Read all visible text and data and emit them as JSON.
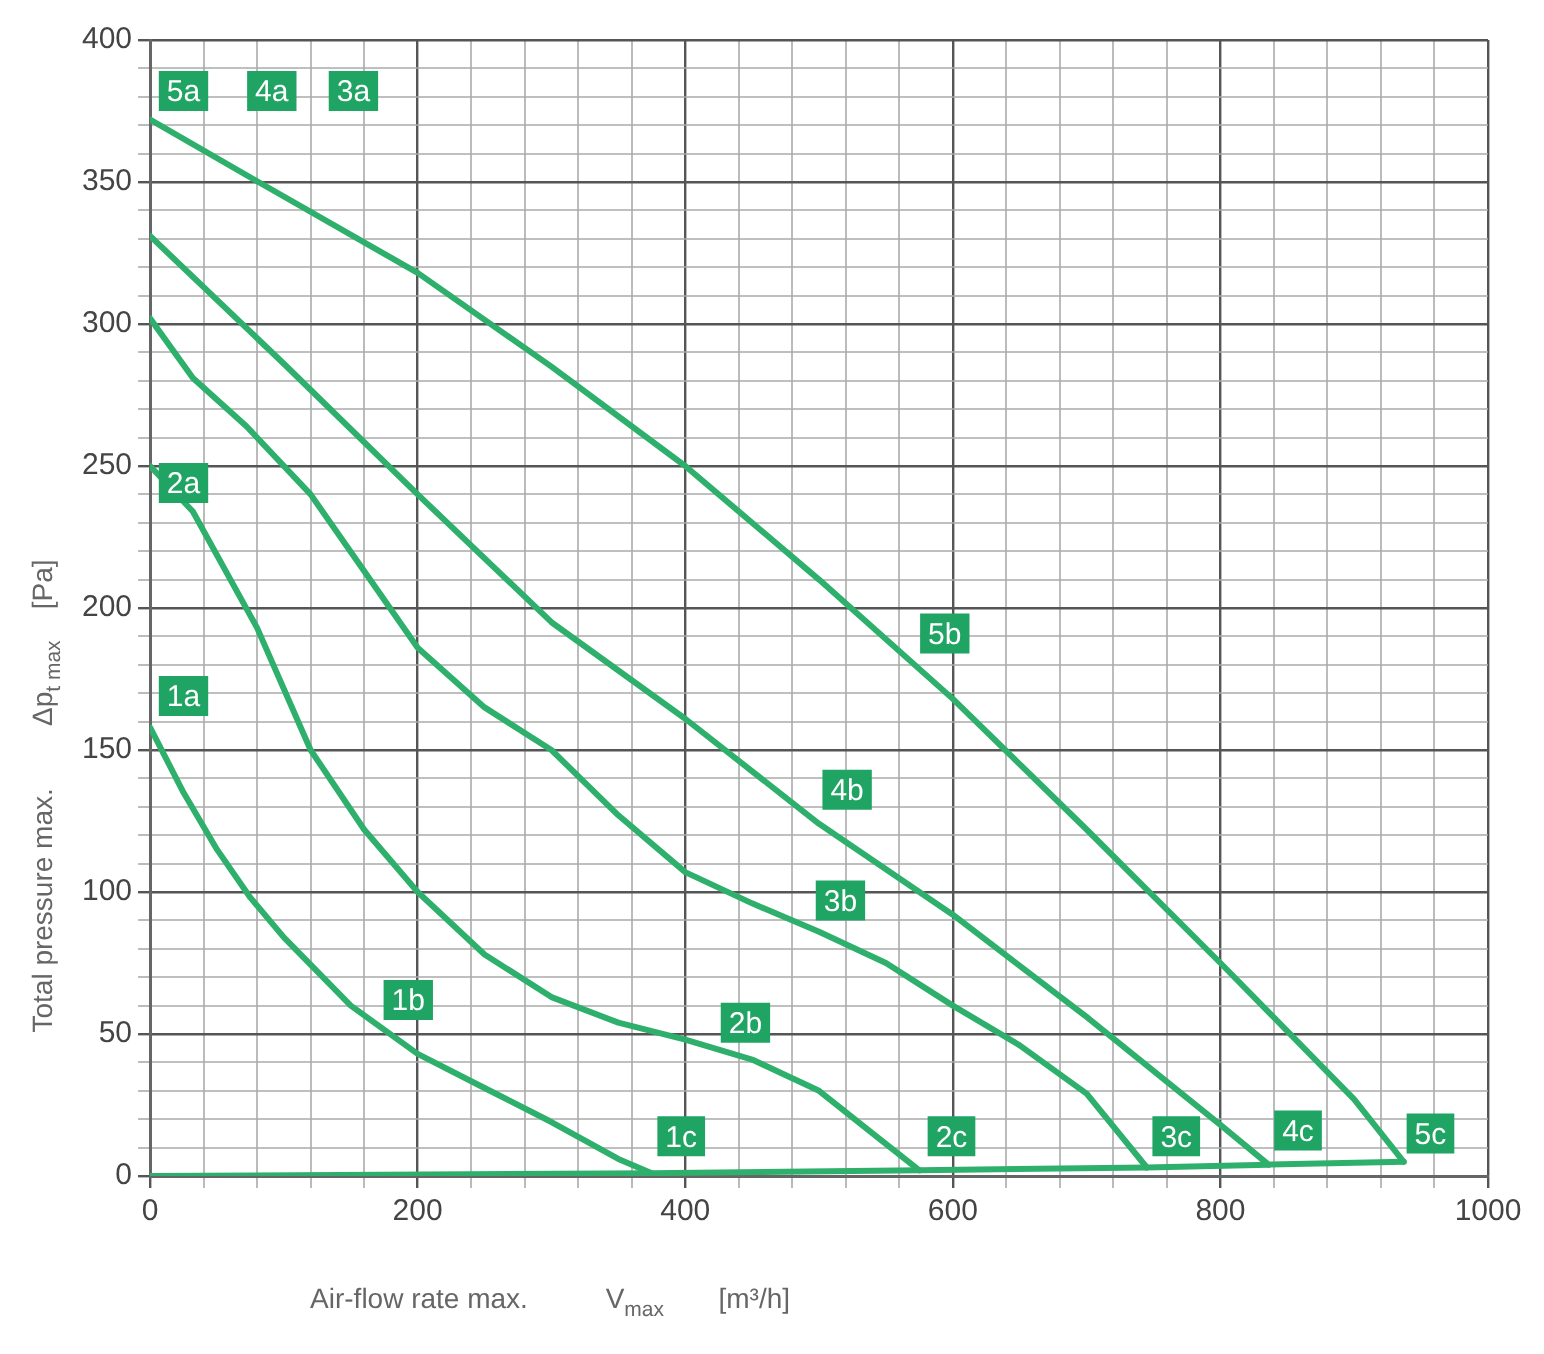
{
  "chart_data": {
    "type": "line",
    "xlabel": "Air-flow rate max.          V$_{max}$       [m³/h]",
    "ylabel": "Total pressure max.        Δp$_{t max}$    [Pa]",
    "xlim": [
      0,
      1000
    ],
    "ylim": [
      0,
      400
    ],
    "xticks": [
      0,
      {
        "value": 40,
        "label": null
      },
      {
        "value": 80,
        "label": null
      },
      {
        "value": 120,
        "label": null
      },
      {
        "value": 160,
        "label": null
      },
      200,
      {
        "value": 240,
        "label": null
      },
      {
        "value": 280,
        "label": null
      },
      {
        "value": 320,
        "label": null
      },
      {
        "value": 360,
        "label": null
      },
      400,
      {
        "value": 440,
        "label": null
      },
      {
        "value": 480,
        "label": null
      },
      {
        "value": 520,
        "label": null
      },
      {
        "value": 560,
        "label": null
      },
      600,
      {
        "value": 640,
        "label": null
      },
      {
        "value": 680,
        "label": null
      },
      {
        "value": 720,
        "label": null
      },
      {
        "value": 760,
        "label": null
      },
      800,
      {
        "value": 840,
        "label": null
      },
      {
        "value": 880,
        "label": null
      },
      {
        "value": 920,
        "label": null
      },
      {
        "value": 960,
        "label": null
      },
      1000
    ],
    "yticks": [
      0,
      {
        "value": 10,
        "label": null
      },
      {
        "value": 20,
        "label": null
      },
      {
        "value": 30,
        "label": null
      },
      {
        "value": 40,
        "label": null
      },
      50,
      {
        "value": 60,
        "label": null
      },
      {
        "value": 70,
        "label": null
      },
      {
        "value": 80,
        "label": null
      },
      {
        "value": 90,
        "label": null
      },
      100,
      {
        "value": 110,
        "label": null
      },
      {
        "value": 120,
        "label": null
      },
      {
        "value": 130,
        "label": null
      },
      {
        "value": 140,
        "label": null
      },
      150,
      {
        "value": 160,
        "label": null
      },
      {
        "value": 170,
        "label": null
      },
      {
        "value": 180,
        "label": null
      },
      {
        "value": 190,
        "label": null
      },
      200,
      {
        "value": 210,
        "label": null
      },
      {
        "value": 220,
        "label": null
      },
      {
        "value": 230,
        "label": null
      },
      {
        "value": 240,
        "label": null
      },
      250,
      {
        "value": 260,
        "label": null
      },
      {
        "value": 270,
        "label": null
      },
      {
        "value": 280,
        "label": null
      },
      {
        "value": 290,
        "label": null
      },
      300,
      {
        "value": 310,
        "label": null
      },
      {
        "value": 320,
        "label": null
      },
      {
        "value": 330,
        "label": null
      },
      {
        "value": 340,
        "label": null
      },
      350,
      {
        "value": 360,
        "label": null
      },
      {
        "value": 370,
        "label": null
      },
      {
        "value": 380,
        "label": null
      },
      {
        "value": 390,
        "label": null
      },
      400
    ],
    "grid": true,
    "legend": false,
    "marker": "none",
    "line_style": "solid",
    "series": [
      {
        "color": "#2eb06c",
        "x": [
          0,
          25,
          50,
          75,
          100,
          150,
          200,
          250,
          300,
          350,
          375
        ],
        "values": [
          158,
          135,
          115,
          98,
          84,
          60,
          43,
          31,
          19,
          6,
          1
        ]
      },
      {
        "color": "#2eb06c",
        "x": [
          0,
          32,
          80,
          120,
          160,
          200,
          250,
          300,
          350,
          400,
          450,
          500,
          540,
          575
        ],
        "values": [
          250,
          234,
          193,
          150,
          122,
          100,
          78,
          63,
          54,
          48,
          41,
          30,
          15,
          2
        ]
      },
      {
        "color": "#2eb06c",
        "x": [
          0,
          32,
          72,
          120,
          160,
          200,
          250,
          300,
          350,
          400,
          450,
          500,
          550,
          600,
          650,
          700,
          745
        ],
        "values": [
          302,
          281,
          264,
          240,
          213,
          186,
          165,
          150,
          127,
          107,
          96,
          86,
          75,
          60,
          46,
          29,
          3
        ]
      },
      {
        "color": "#2eb06c",
        "x": [
          0,
          100,
          200,
          300,
          400,
          500,
          600,
          700,
          800,
          836
        ],
        "values": [
          331,
          286,
          240,
          195,
          161,
          124,
          92,
          56,
          18,
          4
        ]
      },
      {
        "color": "#2eb06c",
        "x": [
          0,
          81,
          200,
          300,
          400,
          500,
          600,
          700,
          800,
          900,
          937
        ],
        "values": [
          372,
          350,
          318,
          285,
          250,
          210,
          168,
          122,
          75,
          27,
          5
        ]
      },
      {
        "color": "#2eb06c",
        "x": [
          0,
          375,
          575,
          745,
          836,
          937
        ],
        "values": [
          0,
          1,
          2,
          3,
          4,
          5
        ]
      }
    ],
    "annotations": [
      {
        "text": "5a",
        "x": 25,
        "y": 382
      },
      {
        "text": "4a",
        "x": 91,
        "y": 382
      },
      {
        "text": "3a",
        "x": 152,
        "y": 382
      },
      {
        "text": "2a",
        "x": 25,
        "y": 244
      },
      {
        "text": "1a",
        "x": 25,
        "y": 169
      },
      {
        "text": "1b",
        "x": 193,
        "y": 62
      },
      {
        "text": "2b",
        "x": 445,
        "y": 54
      },
      {
        "text": "3b",
        "x": 516,
        "y": 97
      },
      {
        "text": "4b",
        "x": 521,
        "y": 136
      },
      {
        "text": "5b",
        "x": 594,
        "y": 191
      },
      {
        "text": "1c",
        "x": 397,
        "y": 14
      },
      {
        "text": "2c",
        "x": 599,
        "y": 14
      },
      {
        "text": "3c",
        "x": 767,
        "y": 14
      },
      {
        "text": "4c",
        "x": 858,
        "y": 16
      },
      {
        "text": "5c",
        "x": 957,
        "y": 15
      }
    ]
  }
}
